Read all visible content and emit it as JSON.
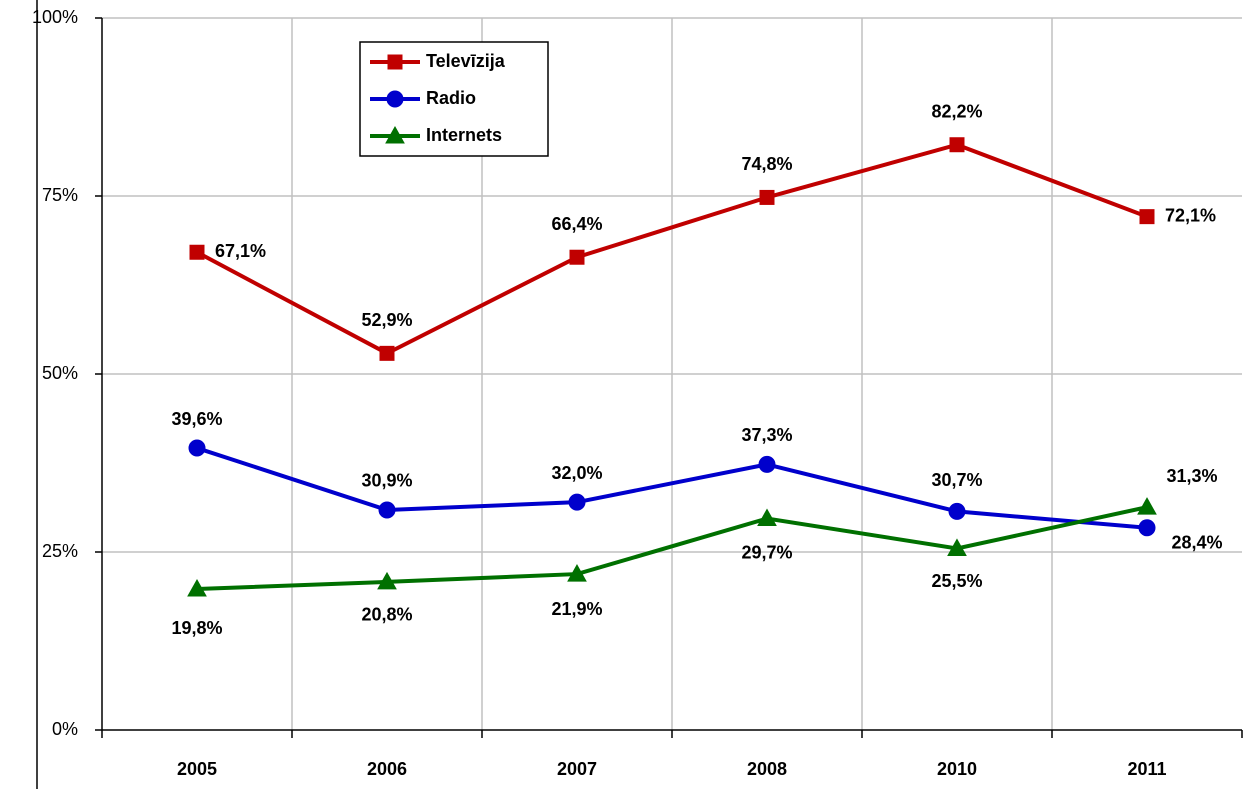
{
  "chart_data": {
    "type": "line",
    "categories": [
      "2005",
      "2006",
      "2007",
      "2008",
      "2010",
      "2011"
    ],
    "series": [
      {
        "name": "Televīzija",
        "color": "#c00000",
        "marker": "square",
        "values": [
          67.1,
          52.9,
          66.4,
          74.8,
          82.2,
          72.1
        ],
        "value_labels": [
          "67,1%",
          "52,9%",
          "66,4%",
          "74,8%",
          "82,2%",
          "72,1%"
        ]
      },
      {
        "name": "Radio",
        "color": "#0000cc",
        "marker": "circle",
        "values": [
          39.6,
          30.9,
          32.0,
          37.3,
          30.7,
          28.4
        ],
        "value_labels": [
          "39,6%",
          "30,9%",
          "32,0%",
          "37,3%",
          "30,7%",
          "28,4%"
        ]
      },
      {
        "name": "Internets",
        "color": "#007000",
        "marker": "triangle",
        "values": [
          19.8,
          20.8,
          21.9,
          29.7,
          25.5,
          31.3
        ],
        "value_labels": [
          "19,8%",
          "20,8%",
          "21,9%",
          "29,7%",
          "25,5%",
          "31,3%"
        ]
      }
    ],
    "ylim": [
      0,
      100
    ],
    "yticks": [
      {
        "value": 0,
        "label": "0%"
      },
      {
        "value": 25,
        "label": "25%"
      },
      {
        "value": 50,
        "label": "50%"
      },
      {
        "value": 75,
        "label": "75%"
      },
      {
        "value": 100,
        "label": "100%"
      }
    ],
    "grid": true,
    "legend": "upper left"
  }
}
